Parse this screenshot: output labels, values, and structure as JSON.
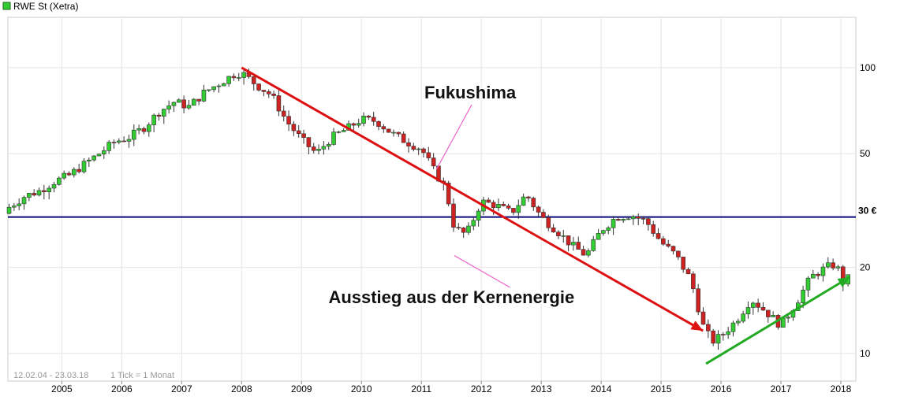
{
  "chart_data": {
    "type": "candlestick",
    "title": "RWE St (Xetra)",
    "legend_color": "#33cc33",
    "scale": "log",
    "ylim": [
      8,
      150
    ],
    "xlim": [
      2004.1,
      2018.25
    ],
    "x_ticks": [
      "2005",
      "2006",
      "2007",
      "2008",
      "2009",
      "2010",
      "2011",
      "2012",
      "2013",
      "2014",
      "2015",
      "2016",
      "2017",
      "2018"
    ],
    "y_ticks": [
      10,
      20,
      50,
      100
    ],
    "grid": true,
    "date_range_label": "12.02.04 - 23.03.18",
    "tick_label": "1 Tick = 1 Monat",
    "up_color": "#33cc33",
    "down_color": "#cc2222",
    "monthly_closes": [
      [
        2004.12,
        32.5
      ],
      [
        2004.38,
        35.5
      ],
      [
        2004.62,
        37.0
      ],
      [
        2004.88,
        40.0
      ],
      [
        2005.12,
        42.0
      ],
      [
        2005.38,
        46.0
      ],
      [
        2005.62,
        50.0
      ],
      [
        2005.88,
        55.0
      ],
      [
        2006.12,
        57.0
      ],
      [
        2006.38,
        62.0
      ],
      [
        2006.62,
        70.0
      ],
      [
        2006.88,
        76.0
      ],
      [
        2007.12,
        73.0
      ],
      [
        2007.38,
        82.0
      ],
      [
        2007.62,
        88.0
      ],
      [
        2007.88,
        95.0
      ],
      [
        2008.0,
        96.0
      ],
      [
        2008.25,
        87.0
      ],
      [
        2008.5,
        80.0
      ],
      [
        2008.75,
        65.0
      ],
      [
        2009.0,
        56.0
      ],
      [
        2009.25,
        50.0
      ],
      [
        2009.5,
        57.0
      ],
      [
        2009.75,
        61.0
      ],
      [
        2010.0,
        66.0
      ],
      [
        2010.25,
        65.0
      ],
      [
        2010.5,
        59.0
      ],
      [
        2010.75,
        55.0
      ],
      [
        2011.0,
        52.0
      ],
      [
        2011.2,
        44.0
      ],
      [
        2011.4,
        38.0
      ],
      [
        2011.55,
        27.5
      ],
      [
        2011.75,
        26.0
      ],
      [
        2012.0,
        34.0
      ],
      [
        2012.25,
        33.0
      ],
      [
        2012.5,
        31.0
      ],
      [
        2012.75,
        36.0
      ],
      [
        2013.0,
        30.0
      ],
      [
        2013.25,
        27.0
      ],
      [
        2013.5,
        24.0
      ],
      [
        2013.75,
        22.0
      ],
      [
        2014.0,
        27.0
      ],
      [
        2014.25,
        30.0
      ],
      [
        2014.5,
        30.5
      ],
      [
        2014.75,
        29.0
      ],
      [
        2015.0,
        24.5
      ],
      [
        2015.25,
        22.0
      ],
      [
        2015.5,
        18.0
      ],
      [
        2015.7,
        12.5
      ],
      [
        2015.85,
        11.0
      ],
      [
        2016.0,
        11.5
      ],
      [
        2016.25,
        13.0
      ],
      [
        2016.5,
        15.5
      ],
      [
        2016.75,
        14.0
      ],
      [
        2017.0,
        12.5
      ],
      [
        2017.25,
        15.0
      ],
      [
        2017.5,
        18.5
      ],
      [
        2017.75,
        20.0
      ],
      [
        2017.92,
        20.5
      ],
      [
        2018.05,
        17.5
      ],
      [
        2018.18,
        19.0
      ]
    ],
    "level_line": {
      "value": 30,
      "label": "30 €",
      "color": "#0a0a7a"
    },
    "trend_down": {
      "from": [
        2008.0,
        100
      ],
      "to": [
        2015.7,
        12.0
      ],
      "color": "#dd1111"
    },
    "trend_up": {
      "from": [
        2015.75,
        9.2
      ],
      "to": [
        2018.15,
        18.5
      ],
      "color": "#22aa22"
    },
    "annotations": [
      {
        "text": "Fukushima",
        "anchor": [
          2011.25,
          44
        ],
        "label_pos": [
          2011.05,
          78
        ]
      },
      {
        "text": "Ausstieg aus der Kernenergie",
        "anchor": [
          2011.55,
          22
        ],
        "label_pos": [
          2009.45,
          15
        ]
      }
    ]
  }
}
